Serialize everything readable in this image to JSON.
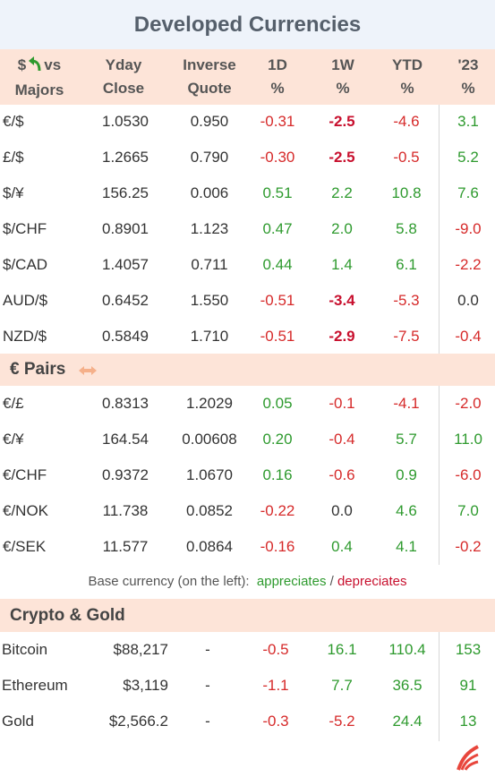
{
  "title": "Developed Currencies",
  "header": {
    "col1_line1": "$",
    "col1_icon": "curved-arrow-icon",
    "col1_vs": "vs",
    "col1_line2": "Majors",
    "yday_line1": "Yday",
    "yday_line2": "Close",
    "inv_line1": "Inverse",
    "inv_line2": "Quote",
    "d1_line1": "1D",
    "d1_line2": "%",
    "w1_line1": "1W",
    "w1_line2": "%",
    "ytd_line1": "YTD",
    "ytd_line2": "%",
    "y23_line1": "'23",
    "y23_line2": "%"
  },
  "majors": [
    {
      "pair": "€/$",
      "yday": "1.0530",
      "inv": "0.950",
      "d1": "-0.31",
      "w1": "-2.5",
      "ytd": "-4.6",
      "y23": "3.1"
    },
    {
      "pair": "£/$",
      "yday": "1.2665",
      "inv": "0.790",
      "d1": "-0.30",
      "w1": "-2.5",
      "ytd": "-0.5",
      "y23": "5.2"
    },
    {
      "pair": "$/¥",
      "yday": "156.25",
      "inv": "0.006",
      "d1": "0.51",
      "w1": "2.2",
      "ytd": "10.8",
      "y23": "7.6"
    },
    {
      "pair": "$/CHF",
      "yday": "0.8901",
      "inv": "1.123",
      "d1": "0.47",
      "w1": "2.0",
      "ytd": "5.8",
      "y23": "-9.0"
    },
    {
      "pair": "$/CAD",
      "yday": "1.4057",
      "inv": "0.711",
      "d1": "0.44",
      "w1": "1.4",
      "ytd": "6.1",
      "y23": "-2.2"
    },
    {
      "pair": "AUD/$",
      "yday": "0.6452",
      "inv": "1.550",
      "d1": "-0.51",
      "w1": "-3.4",
      "ytd": "-5.3",
      "y23": "0.0"
    },
    {
      "pair": "NZD/$",
      "yday": "0.5849",
      "inv": "1.710",
      "d1": "-0.51",
      "w1": "-2.9",
      "ytd": "-7.5",
      "y23": "-0.4"
    }
  ],
  "euro_section": {
    "title": "€ Pairs",
    "icon": "double-arrow-icon"
  },
  "euro": [
    {
      "pair": "€/£",
      "yday": "0.8313",
      "inv": "1.2029",
      "d1": "0.05",
      "w1": "-0.1",
      "ytd": "-4.1",
      "y23": "-2.0"
    },
    {
      "pair": "€/¥",
      "yday": "164.54",
      "inv": "0.00608",
      "d1": "0.20",
      "w1": "-0.4",
      "ytd": "5.7",
      "y23": "11.0"
    },
    {
      "pair": "€/CHF",
      "yday": "0.9372",
      "inv": "1.0670",
      "d1": "0.16",
      "w1": "-0.6",
      "ytd": "0.9",
      "y23": "-6.0"
    },
    {
      "pair": "€/NOK",
      "yday": "11.738",
      "inv": "0.0852",
      "d1": "-0.22",
      "w1": "0.0",
      "ytd": "4.6",
      "y23": "7.0"
    },
    {
      "pair": "€/SEK",
      "yday": "11.577",
      "inv": "0.0864",
      "d1": "-0.16",
      "w1": "0.4",
      "ytd": "4.1",
      "y23": "-0.2"
    }
  ],
  "note": {
    "prefix": "Base currency (on the left):",
    "appreciates": "appreciates",
    "sep": "/",
    "depreciates": "depreciates"
  },
  "crypto_section": {
    "title": "Crypto & Gold"
  },
  "crypto": [
    {
      "name": "Bitcoin",
      "price": "$88,217",
      "inv": "-",
      "d1": "-0.5",
      "w1": "16.1",
      "ytd": "110.4",
      "y23": "153"
    },
    {
      "name": "Ethereum",
      "price": "$3,119",
      "inv": "-",
      "d1": "-1.1",
      "w1": "7.7",
      "ytd": "36.5",
      "y23": "91"
    },
    {
      "name": "Gold",
      "price": "$2,566.2",
      "inv": "-",
      "d1": "-0.3",
      "w1": "-5.2",
      "ytd": "24.4",
      "y23": "13"
    }
  ],
  "colors": {
    "positive": "#2e9a2e",
    "negative": "#d62a2a",
    "bold_negative": "#c8102e",
    "header_bg": "#fde4d8",
    "title_bg": "#eef3fa"
  },
  "logo": "brand-logo-icon"
}
